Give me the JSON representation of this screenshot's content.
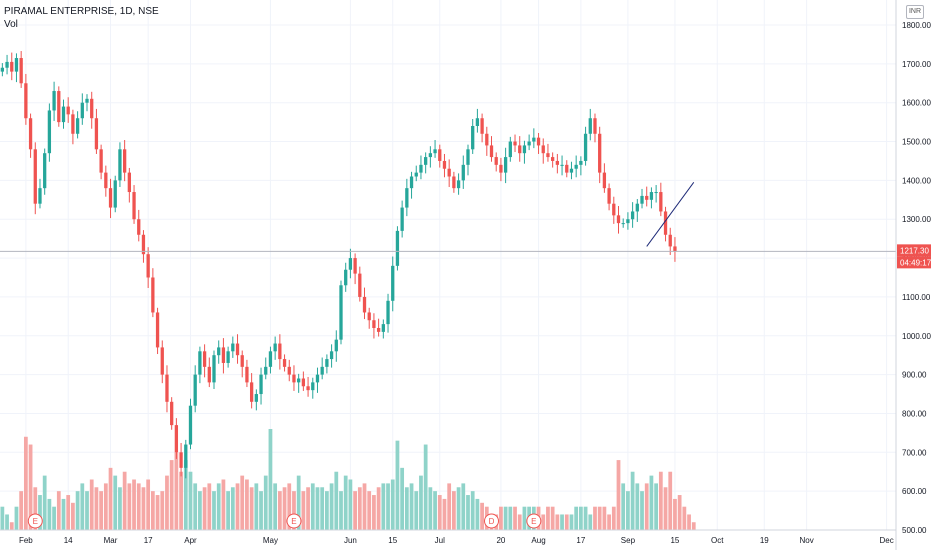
{
  "header": {
    "symbol_line": "PIRAMAL ENTERPRISE, 1D, NSE",
    "volume_label": "Vol",
    "currency": "INR"
  },
  "price_scale": {
    "price_tag": "1217.30",
    "countdown_tag": "04:49:17"
  },
  "colors": {
    "up": "#26a69a",
    "down": "#ef5350",
    "up_volume": "#8fd3c9",
    "down_volume": "#f5a7a5",
    "grid": "#f0f3fa",
    "axis_text": "#131722",
    "trendline": "#1e2a78",
    "price_line": "#b2b5be"
  },
  "chart_data": {
    "type": "candlestick",
    "title": "PIRAMAL ENTERPRISE, 1D, NSE",
    "y_axis": {
      "labels": [
        "1800.00",
        "1700.00",
        "1600.00",
        "1500.00",
        "1400.00",
        "1300.00",
        "1200.00",
        "1100.00",
        "1000.00",
        "900.00",
        "800.00",
        "700.00",
        "600.00",
        "500.00"
      ],
      "range": [
        500,
        1800
      ]
    },
    "x_axis": {
      "ticks": [
        {
          "label": "Feb",
          "bar": 5
        },
        {
          "label": "14",
          "bar": 14
        },
        {
          "label": "Mar",
          "bar": 23
        },
        {
          "label": "17",
          "bar": 31
        },
        {
          "label": "Apr",
          "bar": 40
        },
        {
          "label": "May",
          "bar": 57
        },
        {
          "label": "Jun",
          "bar": 74
        },
        {
          "label": "15",
          "bar": 83
        },
        {
          "label": "Jul",
          "bar": 93
        },
        {
          "label": "20",
          "bar": 106
        },
        {
          "label": "Aug",
          "bar": 114
        },
        {
          "label": "17",
          "bar": 123
        },
        {
          "label": "Sep",
          "bar": 133
        },
        {
          "label": "15",
          "bar": 143
        },
        {
          "label": "Oct",
          "bar": 152
        },
        {
          "label": "19",
          "bar": 162
        },
        {
          "label": "Nov",
          "bar": 171
        },
        {
          "label": "Dec",
          "bar": 188
        }
      ],
      "bar_range": [
        -0.5,
        190
      ]
    },
    "last_price": 1217.3,
    "volume_events": [
      {
        "label": "E",
        "bar": 7
      },
      {
        "label": "E",
        "bar": 62
      },
      {
        "label": "D",
        "bar": 104
      },
      {
        "label": "E",
        "bar": 113
      }
    ],
    "trendline": {
      "from": [
        137,
        1230
      ],
      "to": [
        147,
        1395
      ]
    },
    "closes": [
      1690,
      1705,
      1680,
      1715,
      1650,
      1560,
      1480,
      1340,
      1380,
      1470,
      1580,
      1630,
      1550,
      1590,
      1570,
      1520,
      1560,
      1600,
      1610,
      1560,
      1480,
      1420,
      1380,
      1330,
      1400,
      1480,
      1420,
      1370,
      1300,
      1260,
      1210,
      1150,
      1060,
      970,
      900,
      830,
      770,
      700,
      660,
      720,
      820,
      900,
      960,
      920,
      880,
      950,
      970,
      930,
      960,
      980,
      950,
      920,
      880,
      830,
      850,
      900,
      920,
      960,
      980,
      940,
      920,
      900,
      880,
      890,
      870,
      860,
      880,
      900,
      920,
      940,
      960,
      990,
      1130,
      1170,
      1200,
      1160,
      1100,
      1060,
      1040,
      1020,
      1010,
      1030,
      1090,
      1180,
      1270,
      1330,
      1380,
      1410,
      1420,
      1440,
      1460,
      1470,
      1480,
      1450,
      1430,
      1410,
      1380,
      1400,
      1440,
      1480,
      1540,
      1560,
      1520,
      1490,
      1460,
      1440,
      1420,
      1460,
      1500,
      1490,
      1470,
      1490,
      1500,
      1510,
      1490,
      1470,
      1460,
      1450,
      1440,
      1440,
      1420,
      1430,
      1440,
      1450,
      1520,
      1560,
      1520,
      1420,
      1380,
      1340,
      1310,
      1290,
      1290,
      1300,
      1320,
      1340,
      1360,
      1350,
      1370,
      1370,
      1320,
      1260,
      1230,
      1217.3
    ],
    "volume_bars": [
      {
        "first_bar": 0,
        "volumes": [
          560,
          540,
          520,
          560,
          600,
          740,
          720,
          610,
          590,
          640,
          580,
          560,
          600,
          580,
          590,
          570,
          600,
          620,
          600,
          630,
          610,
          600,
          620,
          660,
          640,
          610,
          650,
          620,
          630,
          620,
          610,
          630,
          600,
          590,
          600,
          640,
          680,
          700,
          650,
          680,
          650,
          620,
          600,
          610,
          620,
          600,
          620,
          630,
          600,
          610,
          620,
          640,
          630,
          610,
          620,
          600,
          640,
          760,
          620,
          600,
          610,
          620,
          600,
          640,
          600,
          610,
          620,
          610,
          610,
          600,
          620,
          650,
          600,
          640,
          630,
          600,
          610,
          620,
          600,
          590,
          610,
          620,
          620,
          630,
          730,
          660,
          610,
          620,
          600,
          640,
          720,
          610,
          600,
          590,
          580,
          620,
          600,
          610,
          620,
          590,
          600,
          580,
          570,
          560,
          540,
          540,
          560,
          560,
          560,
          560,
          540,
          560,
          560,
          560,
          560,
          540,
          560,
          560,
          540,
          540,
          540,
          540,
          560,
          560,
          560,
          540,
          560,
          560,
          560,
          540,
          560,
          680,
          620,
          600,
          650,
          620,
          600,
          620,
          640,
          620,
          650,
          610,
          650,
          580,
          590,
          560,
          540,
          520
        ]
      }
    ]
  }
}
